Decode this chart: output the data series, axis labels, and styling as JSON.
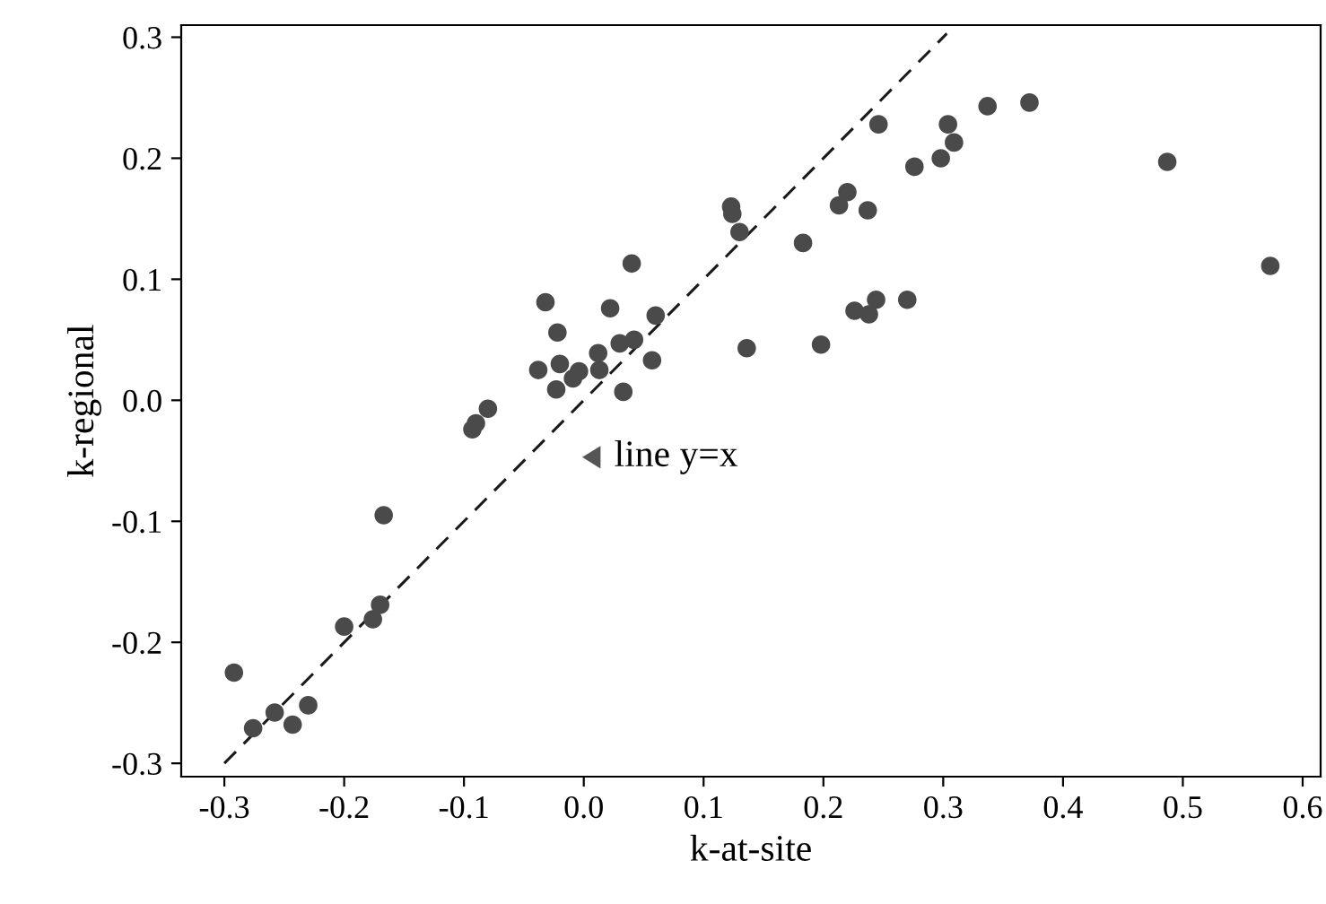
{
  "chart_data": {
    "type": "scatter",
    "xlabel": "k-at-site",
    "ylabel": "k-regional",
    "xlim": [
      -0.336,
      0.615
    ],
    "ylim": [
      -0.311,
      0.31
    ],
    "xticks": [
      {
        "value": -0.3,
        "label": "-0.3"
      },
      {
        "value": -0.2,
        "label": "-0.2"
      },
      {
        "value": -0.1,
        "label": "-0.1"
      },
      {
        "value": 0.0,
        "label": "0.0"
      },
      0.1,
      0.2,
      0.3,
      0.4,
      0.5,
      0.6
    ],
    "yticks": [
      {
        "value": -0.3,
        "label": "-0.3"
      },
      {
        "value": -0.2,
        "label": "-0.2"
      },
      {
        "value": -0.1,
        "label": "-0.1"
      },
      {
        "value": 0.0,
        "label": "0.0"
      },
      0.1,
      0.2,
      0.3
    ],
    "grid": false,
    "legend": false,
    "marker": "circle",
    "series": [
      {
        "color": "#4a4a4a",
        "x": [
          -0.292,
          -0.276,
          -0.258,
          -0.243,
          -0.23,
          -0.2,
          -0.176,
          -0.17,
          -0.167,
          -0.093,
          -0.09,
          -0.08,
          -0.038,
          -0.032,
          -0.023,
          -0.022,
          -0.02,
          -0.009,
          -0.004,
          0.012,
          0.013,
          0.022,
          0.03,
          0.033,
          0.04,
          0.042,
          0.057,
          0.06,
          0.123,
          0.124,
          0.13,
          0.136,
          0.183,
          0.198,
          0.213,
          0.22,
          0.226,
          0.237,
          0.238,
          0.244,
          0.246,
          0.27,
          0.276,
          0.298,
          0.304,
          0.309,
          0.337,
          0.372,
          0.487,
          0.573
        ],
        "values": [
          -0.225,
          -0.271,
          -0.258,
          -0.268,
          -0.252,
          -0.187,
          -0.181,
          -0.169,
          -0.095,
          -0.024,
          -0.019,
          -0.007,
          0.025,
          0.081,
          0.009,
          0.056,
          0.03,
          0.018,
          0.024,
          0.039,
          0.025,
          0.076,
          0.047,
          0.007,
          0.113,
          0.05,
          0.033,
          0.07,
          0.16,
          0.154,
          0.139,
          0.043,
          0.13,
          0.046,
          0.161,
          0.172,
          0.074,
          0.157,
          0.071,
          0.083,
          0.228,
          0.083,
          0.193,
          0.2,
          0.228,
          0.213,
          0.243,
          0.246,
          0.197,
          0.111
        ]
      },
      {
        "type": "line",
        "color": "#1a1a1a",
        "line_style": "dashed",
        "marker": "none",
        "x": [
          -0.3,
          0.303
        ],
        "values": [
          -0.3,
          0.303
        ]
      }
    ],
    "annotations": [
      "line y=x"
    ]
  }
}
